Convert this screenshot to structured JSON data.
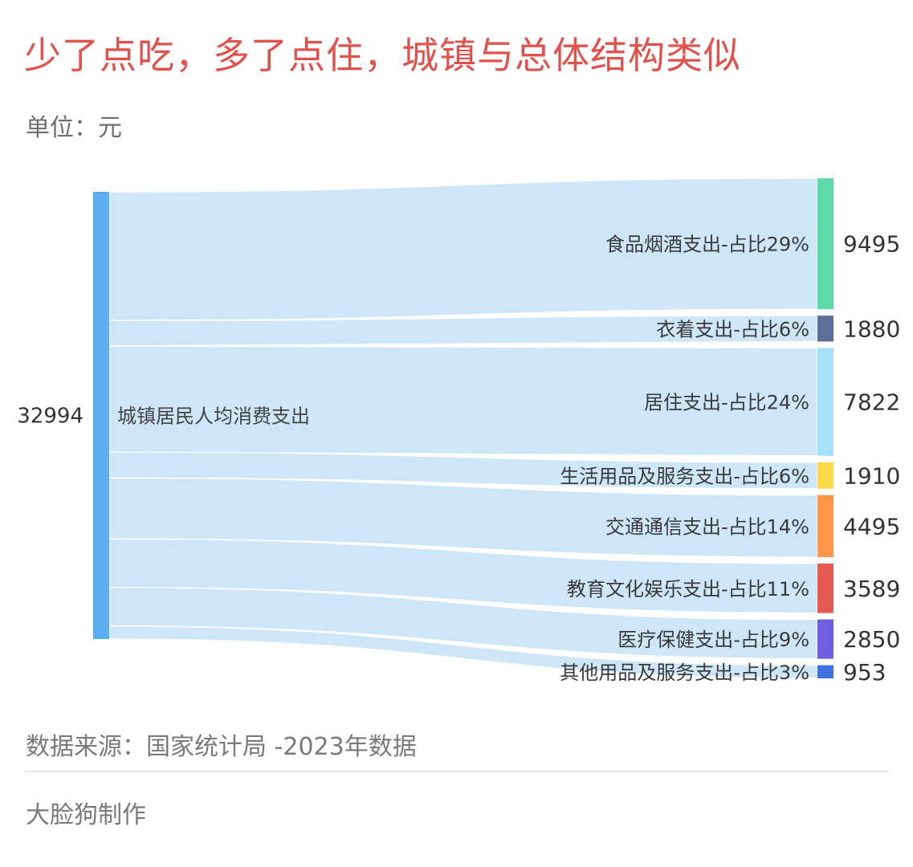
{
  "title": "少了点吃，多了点住，城镇与总体结构类似",
  "unit_label": "单位：元",
  "source_label": "数据来源：国家统计局 -2023年数据",
  "maker_label": "大脸狗制作",
  "colors": {
    "title": "#e0524b",
    "link": "#cde6f8",
    "source_node": "#5aaef0"
  },
  "chart_data": {
    "type": "sankey",
    "source": {
      "name": "城镇居民人均消费支出",
      "value": 32994,
      "value_label": "32994"
    },
    "targets": [
      {
        "name": "食品烟酒支出-占比29%",
        "value": 9495,
        "value_label": "9495",
        "color": "#5cd9a6"
      },
      {
        "name": "衣着支出-占比6%",
        "value": 1880,
        "value_label": "1880",
        "color": "#5b6f97"
      },
      {
        "name": "居住支出-占比24%",
        "value": 7822,
        "value_label": "7822",
        "color": "#a6e1fb"
      },
      {
        "name": "生活用品及服务支出-占比6%",
        "value": 1910,
        "value_label": "1910",
        "color": "#ffd94a"
      },
      {
        "name": "交通通信支出-占比14%",
        "value": 4495,
        "value_label": "4495",
        "color": "#ff974b"
      },
      {
        "name": "教育文化娱乐支出-占比11%",
        "value": 3589,
        "value_label": "3589",
        "color": "#e65a52"
      },
      {
        "name": "医疗保健支出-占比9%",
        "value": 2850,
        "value_label": "2850",
        "color": "#6f5fe0"
      },
      {
        "name": "其他用品及服务支出-占比3%",
        "value": 953,
        "value_label": "953",
        "color": "#3d72e0"
      }
    ]
  }
}
